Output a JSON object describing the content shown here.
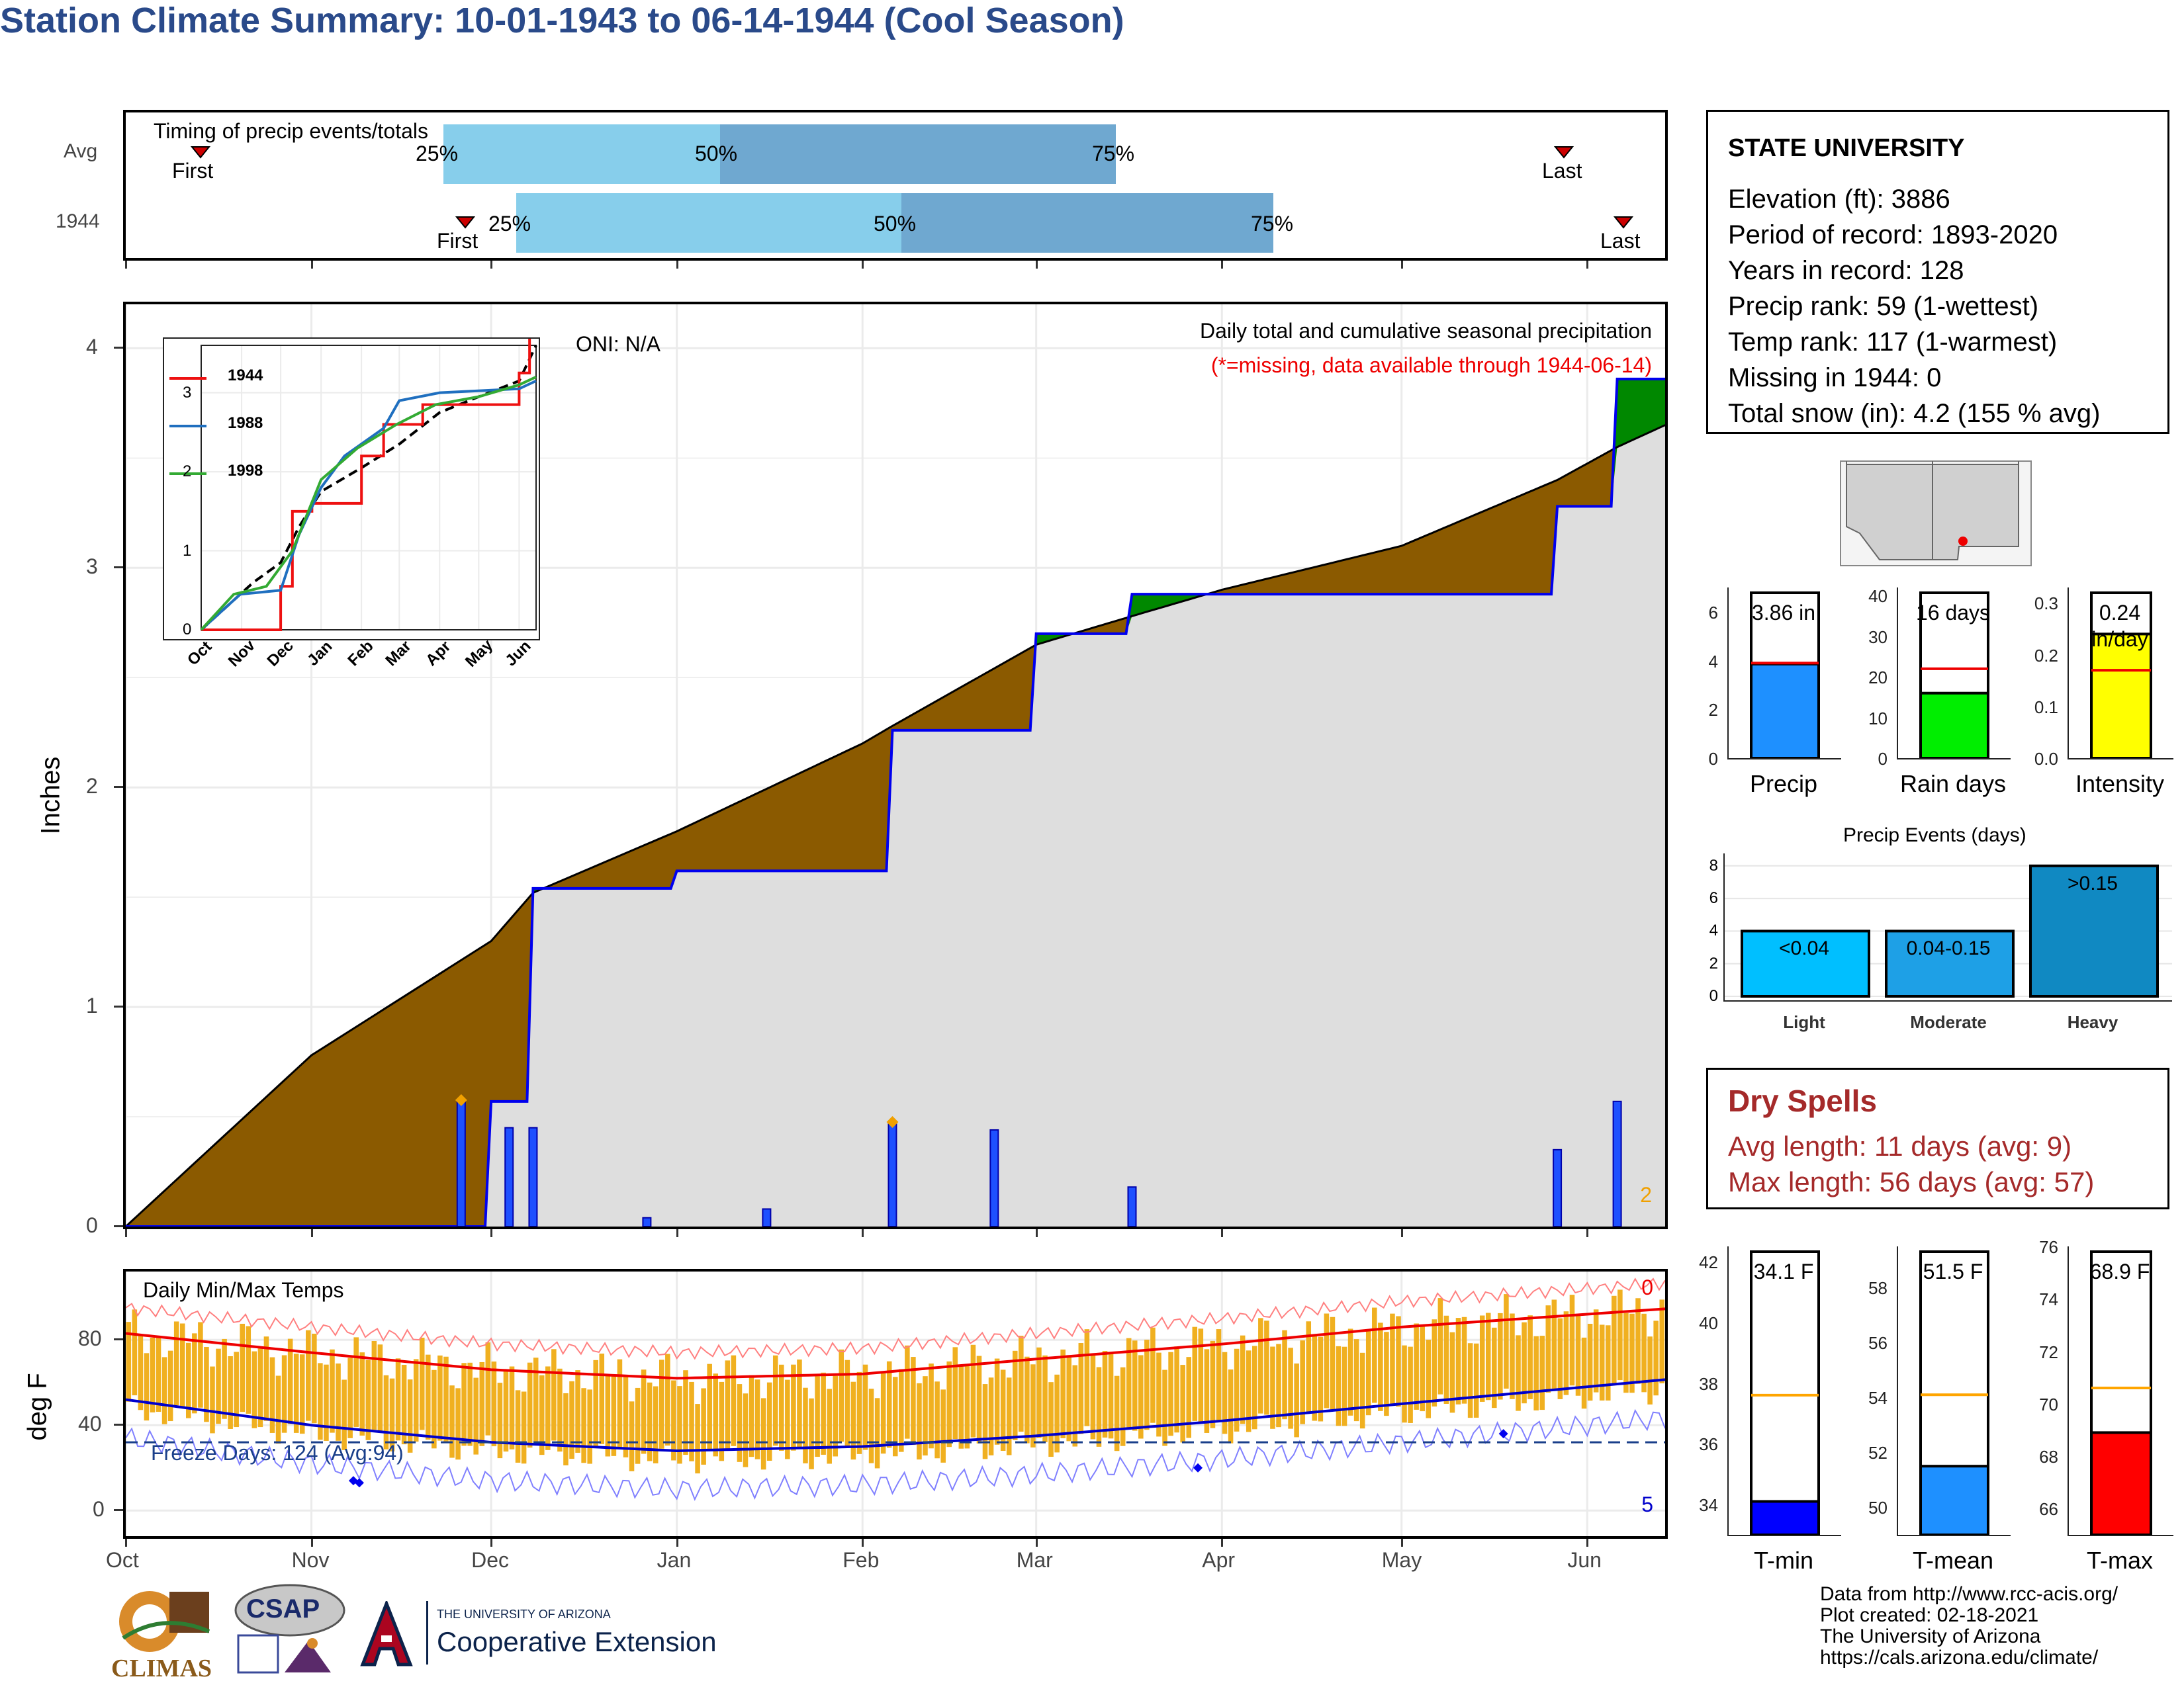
{
  "title": "Station Climate Summary: 10-01-1943 to 06-14-1944 (Cool Season)",
  "timing": {
    "label": "Timing of precip events/totals",
    "rows": [
      {
        "name": "Avg",
        "first": "First",
        "last": "Last",
        "p25": "25%",
        "p50": "50%",
        "p75": "75%"
      },
      {
        "name": "1944",
        "first": "First",
        "last": "Last",
        "p25": "25%",
        "p50": "50%",
        "p75": "75%"
      }
    ]
  },
  "station": {
    "name": "STATE UNIVERSITY",
    "lines": [
      "Elevation (ft): 3886",
      "Period of record: 1893-2020",
      "Years in record: 128",
      "Precip rank: 59 (1-wettest)",
      "Temp rank: 117 (1-warmest)",
      "Missing in 1944: 0",
      "Total snow (in): 4.2 (155 % avg)"
    ]
  },
  "precip_panel": {
    "ylabel": "Inches",
    "oni": "ONI: N/A",
    "caption": "Daily total and cumulative seasonal precipitation",
    "missing_note": "(*=missing, data available through 1944-06-14)",
    "count_label": "2",
    "yticks": [
      "0",
      "1",
      "2",
      "3",
      "4"
    ]
  },
  "inset": {
    "legend": [
      "1944",
      "1988",
      "1998"
    ],
    "yticks": [
      "0",
      "1",
      "2",
      "3"
    ],
    "xticks": [
      "Oct",
      "Nov",
      "Dec",
      "Jan",
      "Feb",
      "Mar",
      "Apr",
      "May",
      "Jun"
    ]
  },
  "temp_panel": {
    "ylabel": "deg F",
    "label": "Daily Min/Max Temps",
    "freeze": "Freeze Days: 124 (Avg:94)",
    "top_count": "0",
    "bottom_count": "5",
    "yticks": [
      "0",
      "40",
      "80"
    ]
  },
  "months": [
    "Oct",
    "Nov",
    "Dec",
    "Jan",
    "Feb",
    "Mar",
    "Apr",
    "May",
    "Jun"
  ],
  "summary_bars": [
    {
      "name": "Precip",
      "label": "3.86 in",
      "value": 3.86,
      "avg": 3.9,
      "max": 7,
      "ticks": [
        "0",
        "2",
        "4",
        "6"
      ],
      "color": "#1e90ff"
    },
    {
      "name": "Rain days",
      "label": "16 days",
      "value": 16,
      "avg": 22,
      "max": 42,
      "ticks": [
        "0",
        "10",
        "20",
        "30",
        "40"
      ],
      "color": "#00ee00"
    },
    {
      "name": "Intensity",
      "label": "0.24",
      "label2": "in/day",
      "value": 0.24,
      "avg": 0.17,
      "max": 0.33,
      "ticks": [
        "0.0",
        "0.1",
        "0.2",
        "0.3"
      ],
      "color": "#ffff00"
    }
  ],
  "events": {
    "title": "Precip Events (days)",
    "categories": [
      "Light",
      "Moderate",
      "Heavy"
    ],
    "labels": [
      "<0.04",
      "0.04-0.15",
      ">0.15"
    ],
    "values": [
      4,
      4,
      8
    ],
    "ticks": [
      "0",
      "2",
      "4",
      "6",
      "8"
    ]
  },
  "dry_spells": {
    "title": "Dry Spells",
    "avg": "Avg length: 11 days (avg: 9)",
    "max": "Max length: 56 days (avg: 57)"
  },
  "temp_bars": [
    {
      "name": "T-min",
      "label": "34.1 F",
      "value": 34.1,
      "avg": 37.6,
      "min": 33,
      "max": 42.5,
      "ticks": [
        "34",
        "36",
        "38",
        "40",
        "42"
      ],
      "color": "#0000ff"
    },
    {
      "name": "T-mean",
      "label": "51.5 F",
      "value": 51.5,
      "avg": 54.1,
      "min": 49,
      "max": 59.5,
      "ticks": [
        "50",
        "52",
        "54",
        "56",
        "58"
      ],
      "color": "#1e90ff"
    },
    {
      "name": "T-max",
      "label": "68.9 F",
      "value": 68.9,
      "avg": 70.6,
      "min": 65,
      "max": 76,
      "ticks": [
        "66",
        "68",
        "70",
        "72",
        "74",
        "76"
      ],
      "color": "#ff0000"
    }
  ],
  "footer": [
    "Data from http://www.rcc-acis.org/",
    "Plot created: 02-18-2021",
    "The University of Arizona",
    "https://cals.arizona.edu/climate/"
  ],
  "logos": {
    "climas": "CLIMAS",
    "csap": "CSAP",
    "ua_small": "THE UNIVERSITY OF ARIZONA",
    "ua_big": "Cooperative Extension"
  },
  "chart_data": [
    {
      "type": "area",
      "name": "cumulative precipitation",
      "xlabel": "",
      "ylabel": "Inches",
      "ylim": [
        0,
        4.2
      ],
      "x": [
        "10-01",
        "11-01",
        "12-01",
        "12-08",
        "01-01",
        "02-01",
        "02-06",
        "03-01",
        "03-17",
        "04-01",
        "05-01",
        "05-27",
        "06-06",
        "06-14"
      ],
      "series": [
        {
          "name": "Avg",
          "values": [
            0.0,
            0.78,
            1.3,
            1.52,
            1.8,
            2.2,
            2.28,
            2.65,
            2.78,
            2.9,
            3.1,
            3.4,
            3.55,
            3.65
          ]
        },
        {
          "name": "1944",
          "values": [
            0.0,
            0.0,
            0.57,
            1.54,
            1.62,
            1.62,
            2.26,
            2.7,
            2.88,
            2.88,
            2.88,
            3.28,
            3.86,
            3.86
          ]
        }
      ]
    },
    {
      "type": "bar",
      "name": "daily precipitation",
      "ylabel": "Inches",
      "x": [
        "11-26",
        "12-04",
        "12-08",
        "12-27",
        "01-16",
        "02-06",
        "02-23",
        "03-17",
        "05-27",
        "06-06"
      ],
      "values": [
        0.57,
        0.45,
        0.45,
        0.04,
        0.08,
        0.47,
        0.44,
        0.18,
        0.35,
        0.57
      ]
    },
    {
      "type": "line",
      "name": "daily min/max temps",
      "ylabel": "deg F",
      "ylim": [
        -12,
        112
      ],
      "x": [
        "Oct",
        "Nov",
        "Dec",
        "Jan",
        "Feb",
        "Mar",
        "Apr",
        "May",
        "Jun"
      ],
      "series": [
        {
          "name": "Avg max",
          "values": [
            83,
            74,
            66,
            62,
            64,
            71,
            78,
            86,
            92
          ]
        },
        {
          "name": "Avg min",
          "values": [
            52,
            40,
            32,
            28,
            30,
            35,
            42,
            50,
            58
          ]
        }
      ]
    }
  ]
}
